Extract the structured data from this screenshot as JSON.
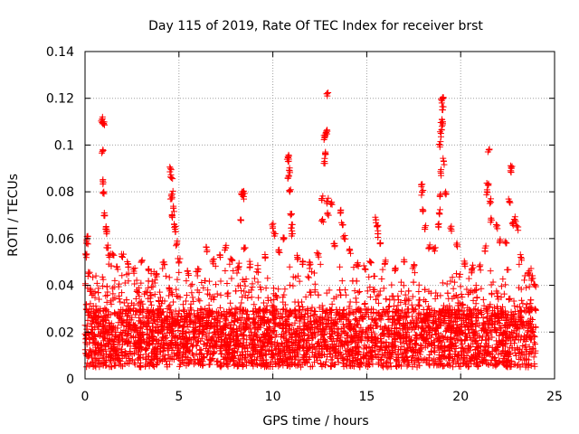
{
  "chart_data": {
    "type": "scatter",
    "title": "Day 115 of 2019, Rate Of TEC Index for receiver brst",
    "xlabel": "GPS time / hours",
    "ylabel": "ROTI / TECUs",
    "xlim": [
      0,
      25
    ],
    "ylim": [
      0,
      0.14
    ],
    "xticks": [
      0,
      5,
      10,
      15,
      20,
      25
    ],
    "xtick_labels": [
      "0",
      "5",
      "10",
      "15",
      "20",
      "25"
    ],
    "yticks": [
      0,
      0.02,
      0.04,
      0.06,
      0.08,
      0.1,
      0.12,
      0.14
    ],
    "ytick_labels": [
      "0",
      "0.02",
      "0.04",
      "0.06",
      "0.08",
      "0.1",
      "0.12",
      "0.14"
    ],
    "grid": true,
    "marker": "+",
    "color": "#ff0000",
    "series": [
      {
        "name": "ROTI",
        "points": [
          [
            0.05,
            0.053
          ],
          [
            0.1,
            0.058
          ],
          [
            0.15,
            0.061
          ],
          [
            0.2,
            0.045
          ],
          [
            0.3,
            0.038
          ],
          [
            0.9,
            0.111
          ],
          [
            0.95,
            0.11
          ],
          [
            1.0,
            0.109
          ],
          [
            0.95,
            0.098
          ],
          [
            0.97,
            0.084
          ],
          [
            1.0,
            0.08
          ],
          [
            1.05,
            0.07
          ],
          [
            1.1,
            0.064
          ],
          [
            1.15,
            0.062
          ],
          [
            1.2,
            0.056
          ],
          [
            1.3,
            0.052
          ],
          [
            1.5,
            0.053
          ],
          [
            1.7,
            0.048
          ],
          [
            2.0,
            0.052
          ],
          [
            2.3,
            0.049
          ],
          [
            2.6,
            0.046
          ],
          [
            3.0,
            0.05
          ],
          [
            3.4,
            0.047
          ],
          [
            3.8,
            0.045
          ],
          [
            4.2,
            0.05
          ],
          [
            4.55,
            0.09
          ],
          [
            4.6,
            0.086
          ],
          [
            4.65,
            0.079
          ],
          [
            4.6,
            0.077
          ],
          [
            4.7,
            0.073
          ],
          [
            4.65,
            0.069
          ],
          [
            4.75,
            0.066
          ],
          [
            4.8,
            0.064
          ],
          [
            4.9,
            0.058
          ],
          [
            5.0,
            0.05
          ],
          [
            5.5,
            0.045
          ],
          [
            6.0,
            0.046
          ],
          [
            6.5,
            0.055
          ],
          [
            6.8,
            0.05
          ],
          [
            7.2,
            0.052
          ],
          [
            7.5,
            0.056
          ],
          [
            7.8,
            0.051
          ],
          [
            8.2,
            0.048
          ],
          [
            8.35,
            0.08
          ],
          [
            8.4,
            0.079
          ],
          [
            8.45,
            0.078
          ],
          [
            8.3,
            0.068
          ],
          [
            8.5,
            0.056
          ],
          [
            8.8,
            0.049
          ],
          [
            9.2,
            0.047
          ],
          [
            9.6,
            0.052
          ],
          [
            10.0,
            0.065
          ],
          [
            10.1,
            0.062
          ],
          [
            10.3,
            0.055
          ],
          [
            10.6,
            0.06
          ],
          [
            10.8,
            0.095
          ],
          [
            10.85,
            0.094
          ],
          [
            10.9,
            0.089
          ],
          [
            10.85,
            0.087
          ],
          [
            10.9,
            0.08
          ],
          [
            10.95,
            0.07
          ],
          [
            11.0,
            0.066
          ],
          [
            11.0,
            0.062
          ],
          [
            11.3,
            0.052
          ],
          [
            11.6,
            0.05
          ],
          [
            12.0,
            0.049
          ],
          [
            12.4,
            0.053
          ],
          [
            12.6,
            0.077
          ],
          [
            12.65,
            0.068
          ],
          [
            12.75,
            0.103
          ],
          [
            12.8,
            0.104
          ],
          [
            12.85,
            0.106
          ],
          [
            12.8,
            0.097
          ],
          [
            12.75,
            0.093
          ],
          [
            12.9,
            0.121
          ],
          [
            12.9,
            0.076
          ],
          [
            12.95,
            0.07
          ],
          [
            13.1,
            0.075
          ],
          [
            13.3,
            0.057
          ],
          [
            13.6,
            0.072
          ],
          [
            13.7,
            0.066
          ],
          [
            13.8,
            0.06
          ],
          [
            14.1,
            0.055
          ],
          [
            14.5,
            0.049
          ],
          [
            14.9,
            0.047
          ],
          [
            15.2,
            0.05
          ],
          [
            15.5,
            0.068
          ],
          [
            15.55,
            0.065
          ],
          [
            15.6,
            0.062
          ],
          [
            15.7,
            0.058
          ],
          [
            16.0,
            0.05
          ],
          [
            16.5,
            0.047
          ],
          [
            17.0,
            0.05
          ],
          [
            17.5,
            0.048
          ],
          [
            17.9,
            0.083
          ],
          [
            17.95,
            0.08
          ],
          [
            18.0,
            0.072
          ],
          [
            18.1,
            0.064
          ],
          [
            18.3,
            0.056
          ],
          [
            18.6,
            0.056
          ],
          [
            18.8,
            0.066
          ],
          [
            18.85,
            0.071
          ],
          [
            18.9,
            0.078
          ],
          [
            18.95,
            0.088
          ],
          [
            18.9,
            0.1
          ],
          [
            18.95,
            0.105
          ],
          [
            19.0,
            0.108
          ],
          [
            19.0,
            0.111
          ],
          [
            19.05,
            0.115
          ],
          [
            19.0,
            0.119
          ],
          [
            19.05,
            0.12
          ],
          [
            19.1,
            0.093
          ],
          [
            19.2,
            0.08
          ],
          [
            19.5,
            0.064
          ],
          [
            19.8,
            0.058
          ],
          [
            20.2,
            0.049
          ],
          [
            20.6,
            0.046
          ],
          [
            21.0,
            0.048
          ],
          [
            21.3,
            0.056
          ],
          [
            21.4,
            0.08
          ],
          [
            21.45,
            0.083
          ],
          [
            21.5,
            0.098
          ],
          [
            21.55,
            0.076
          ],
          [
            21.6,
            0.068
          ],
          [
            21.9,
            0.065
          ],
          [
            22.1,
            0.059
          ],
          [
            22.4,
            0.058
          ],
          [
            22.6,
            0.076
          ],
          [
            22.65,
            0.089
          ],
          [
            22.7,
            0.09
          ],
          [
            22.8,
            0.067
          ],
          [
            22.9,
            0.068
          ],
          [
            23.0,
            0.065
          ],
          [
            23.2,
            0.052
          ],
          [
            23.6,
            0.045
          ],
          [
            23.8,
            0.043
          ],
          [
            23.95,
            0.04
          ]
        ],
        "baseline_band": {
          "x_range": [
            0,
            24
          ],
          "dense_y_range": [
            0.005,
            0.03
          ],
          "envelope_y": [
            0.036,
            0.05
          ],
          "note_count": 4200
        }
      }
    ]
  }
}
